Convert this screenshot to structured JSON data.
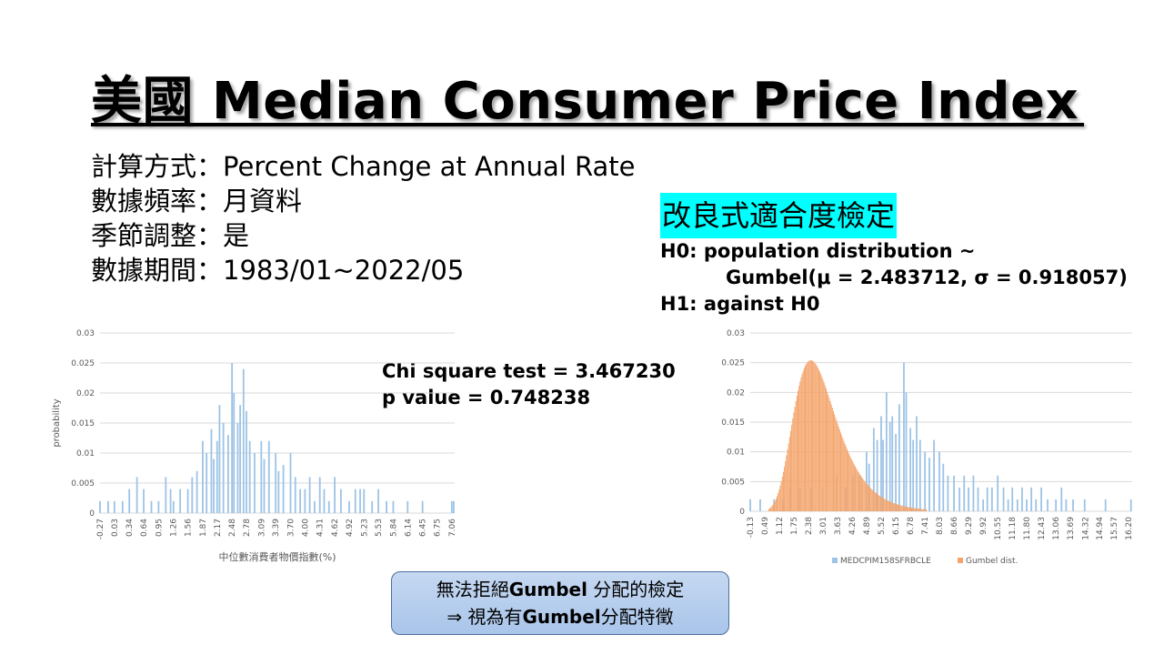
{
  "title": "美國 Median Consumer Price Index",
  "info": [
    {
      "label": "計算方式",
      "sep": "：",
      "value": "Percent Change at Annual Rate"
    },
    {
      "label": "數據頻率",
      "sep": "：",
      "value": "月資料"
    },
    {
      "label": "季節調整",
      "sep": "：",
      "value": "是"
    },
    {
      "label": "數據期間",
      "sep": "：",
      "value": "1983/01~2022/05"
    }
  ],
  "test": {
    "title": "改良式適合度檢定",
    "h0_line1": "H0: population distribution ~",
    "h0_line2": "Gumbel(μ = 2.483712, σ = 0.918057)",
    "h1": "H1: against H0",
    "chi_square": "Chi square test = 3.467230",
    "p_value": "p value = 0.748238"
  },
  "conclusion": {
    "line1_pre": "無法拒絕",
    "line1_bold": "Gumbel",
    "line1_post": " 分配的檢定",
    "line2_pre": "⇒ 視為有",
    "line2_bold": "Gumbel",
    "line2_post": "分配特徵"
  },
  "colors": {
    "histogram": "#9dc3e6",
    "gumbel": "#f4a46b",
    "highlight": "#00ffff"
  },
  "chart_data": [
    {
      "type": "bar",
      "ylabel": "probability",
      "xlabel": "中位數消費者物價指數(%)",
      "ylim": [
        0,
        0.03
      ],
      "yticks": [
        "0.03",
        "0.025",
        "0.02",
        "0.015",
        "0.01",
        "0.005",
        "0"
      ],
      "xticks": [
        "-0.27",
        "0.03",
        "0.34",
        "0.64",
        "0.95",
        "1.26",
        "1.56",
        "1.87",
        "2.17",
        "2.48",
        "2.78",
        "3.09",
        "3.39",
        "3.70",
        "4.00",
        "4.31",
        "4.62",
        "4.92",
        "5.23",
        "5.53",
        "5.84",
        "6.14",
        "6.45",
        "6.75",
        "7.06"
      ],
      "x_range": [
        -0.27,
        7.12
      ],
      "series": [
        {
          "values": [
            [
              -0.27,
              0.002
            ],
            [
              -0.1,
              0.002
            ],
            [
              0.03,
              0.002
            ],
            [
              0.2,
              0.002
            ],
            [
              0.34,
              0.004
            ],
            [
              0.5,
              0.006
            ],
            [
              0.64,
              0.004
            ],
            [
              0.8,
              0.002
            ],
            [
              0.95,
              0.002
            ],
            [
              1.1,
              0.006
            ],
            [
              1.2,
              0.004
            ],
            [
              1.26,
              0.002
            ],
            [
              1.4,
              0.004
            ],
            [
              1.56,
              0.004
            ],
            [
              1.65,
              0.006
            ],
            [
              1.75,
              0.007
            ],
            [
              1.87,
              0.012
            ],
            [
              1.95,
              0.01
            ],
            [
              2.05,
              0.014
            ],
            [
              2.1,
              0.009
            ],
            [
              2.17,
              0.012
            ],
            [
              2.22,
              0.018
            ],
            [
              2.3,
              0.015
            ],
            [
              2.4,
              0.013
            ],
            [
              2.48,
              0.025
            ],
            [
              2.52,
              0.02
            ],
            [
              2.6,
              0.015
            ],
            [
              2.65,
              0.018
            ],
            [
              2.72,
              0.024
            ],
            [
              2.78,
              0.017
            ],
            [
              2.85,
              0.012
            ],
            [
              2.95,
              0.01
            ],
            [
              3.09,
              0.012
            ],
            [
              3.15,
              0.009
            ],
            [
              3.25,
              0.012
            ],
            [
              3.39,
              0.01
            ],
            [
              3.45,
              0.007
            ],
            [
              3.55,
              0.008
            ],
            [
              3.7,
              0.01
            ],
            [
              3.8,
              0.006
            ],
            [
              3.9,
              0.004
            ],
            [
              4.0,
              0.004
            ],
            [
              4.1,
              0.006
            ],
            [
              4.2,
              0.002
            ],
            [
              4.31,
              0.006
            ],
            [
              4.4,
              0.004
            ],
            [
              4.5,
              0.002
            ],
            [
              4.62,
              0.006
            ],
            [
              4.75,
              0.004
            ],
            [
              4.92,
              0.002
            ],
            [
              5.05,
              0.004
            ],
            [
              5.15,
              0.004
            ],
            [
              5.23,
              0.004
            ],
            [
              5.4,
              0.002
            ],
            [
              5.53,
              0.004
            ],
            [
              5.7,
              0.002
            ],
            [
              5.84,
              0.002
            ],
            [
              6.14,
              0.002
            ],
            [
              6.45,
              0.002
            ],
            [
              7.06,
              0.002
            ],
            [
              7.1,
              0.002
            ]
          ]
        }
      ]
    },
    {
      "type": "bar",
      "ylim": [
        0,
        0.03
      ],
      "yticks": [
        "0.03",
        "0.025",
        "0.02",
        "0.015",
        "0.01",
        "0.005",
        "0"
      ],
      "xticks": [
        "-0.13",
        "0.49",
        "1.12",
        "1.75",
        "2.38",
        "3.01",
        "3.63",
        "4.26",
        "4.89",
        "5.52",
        "6.15",
        "6.78",
        "7.41",
        "8.03",
        "8.66",
        "9.29",
        "9.92",
        "10.55",
        "11.18",
        "11.80",
        "12.43",
        "13.06",
        "13.69",
        "14.32",
        "14.94",
        "15.57",
        "16.20"
      ],
      "x_range": [
        -0.13,
        16.35
      ],
      "legend": [
        "MEDCPIM158SFRBCLE",
        "Gumbel dist."
      ],
      "legend_placement": "bottom",
      "series": [
        {
          "name": "MEDCPIM158SFRBCLE",
          "values": [
            [
              -0.13,
              0.002
            ],
            [
              0.3,
              0.002
            ],
            [
              0.9,
              0.002
            ],
            [
              1.3,
              0.002
            ],
            [
              1.6,
              0.004
            ],
            [
              2.0,
              0.004
            ],
            [
              2.5,
              0.004
            ],
            [
              3.0,
              0.004
            ],
            [
              3.6,
              0.006
            ],
            [
              4.0,
              0.004
            ],
            [
              4.3,
              0.006
            ],
            [
              4.6,
              0.006
            ],
            [
              4.89,
              0.01
            ],
            [
              5.0,
              0.008
            ],
            [
              5.2,
              0.014
            ],
            [
              5.35,
              0.012
            ],
            [
              5.52,
              0.016
            ],
            [
              5.6,
              0.012
            ],
            [
              5.75,
              0.02
            ],
            [
              5.9,
              0.015
            ],
            [
              6.0,
              0.016
            ],
            [
              6.15,
              0.013
            ],
            [
              6.3,
              0.018
            ],
            [
              6.5,
              0.025
            ],
            [
              6.6,
              0.02
            ],
            [
              6.78,
              0.014
            ],
            [
              6.9,
              0.012
            ],
            [
              7.05,
              0.016
            ],
            [
              7.2,
              0.012
            ],
            [
              7.41,
              0.01
            ],
            [
              7.6,
              0.009
            ],
            [
              7.8,
              0.012
            ],
            [
              8.03,
              0.01
            ],
            [
              8.2,
              0.008
            ],
            [
              8.4,
              0.006
            ],
            [
              8.66,
              0.006
            ],
            [
              8.9,
              0.004
            ],
            [
              9.1,
              0.006
            ],
            [
              9.29,
              0.004
            ],
            [
              9.5,
              0.006
            ],
            [
              9.7,
              0.004
            ],
            [
              9.92,
              0.002
            ],
            [
              10.1,
              0.004
            ],
            [
              10.3,
              0.004
            ],
            [
              10.55,
              0.006
            ],
            [
              10.8,
              0.004
            ],
            [
              11.0,
              0.002
            ],
            [
              11.18,
              0.004
            ],
            [
              11.4,
              0.002
            ],
            [
              11.6,
              0.004
            ],
            [
              11.8,
              0.002
            ],
            [
              12.0,
              0.004
            ],
            [
              12.2,
              0.002
            ],
            [
              12.43,
              0.004
            ],
            [
              12.7,
              0.002
            ],
            [
              13.06,
              0.002
            ],
            [
              13.3,
              0.004
            ],
            [
              13.5,
              0.002
            ],
            [
              13.8,
              0.002
            ],
            [
              14.3,
              0.002
            ],
            [
              15.2,
              0.002
            ],
            [
              16.3,
              0.002
            ]
          ]
        },
        {
          "name": "Gumbel dist.",
          "mu": 2.483712,
          "sigma": 0.918057
        }
      ]
    }
  ]
}
